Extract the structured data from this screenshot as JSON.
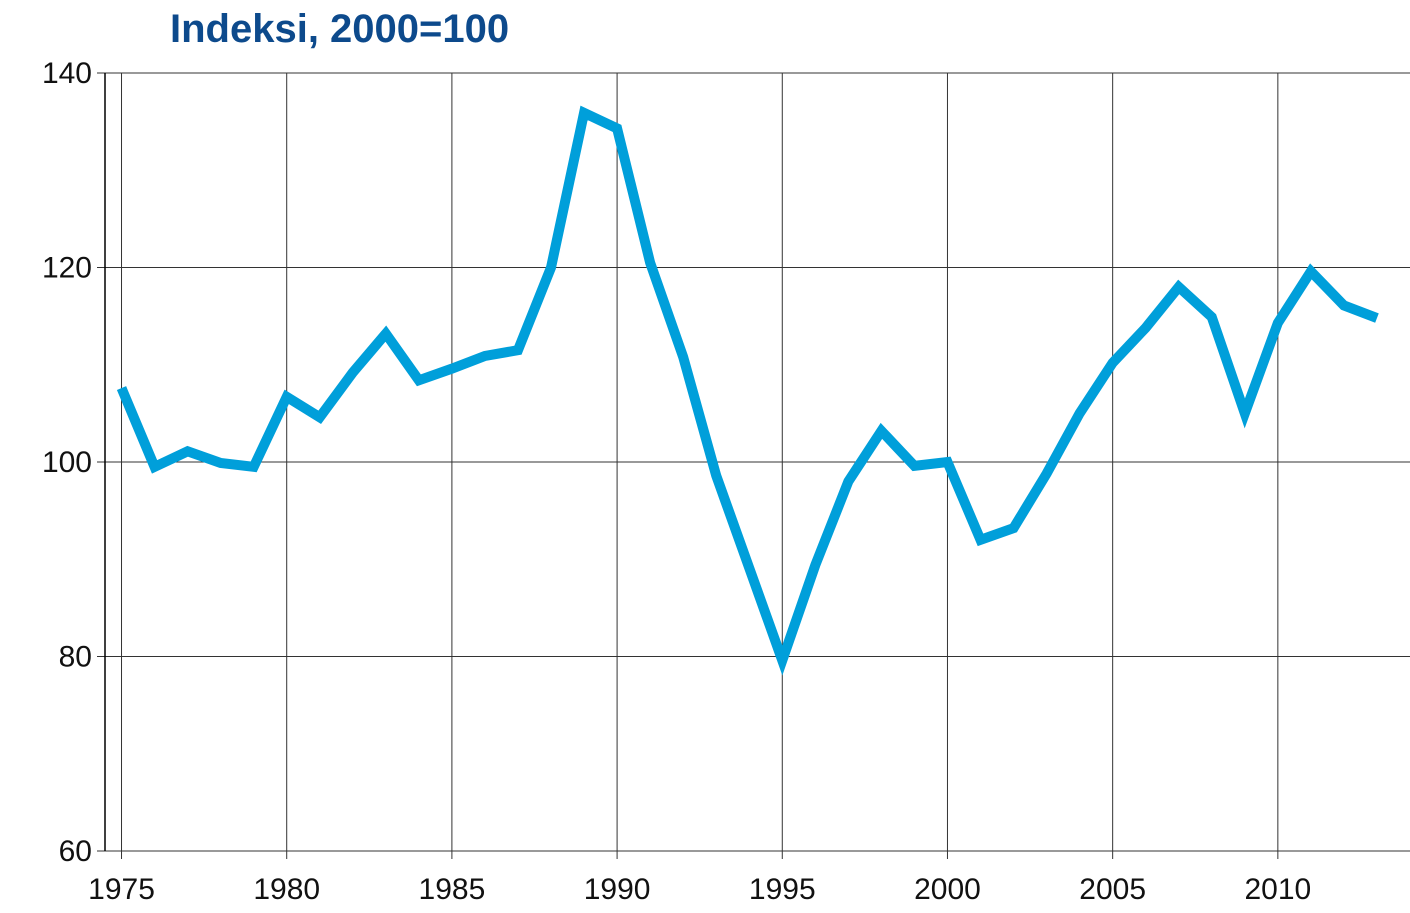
{
  "chart_data": {
    "type": "line",
    "title": "Indeksi, 2000=100",
    "x": [
      1975,
      1976,
      1977,
      1978,
      1979,
      1980,
      1981,
      1982,
      1983,
      1984,
      1985,
      1986,
      1987,
      1988,
      1989,
      1990,
      1991,
      1992,
      1993,
      1994,
      1995,
      1996,
      1997,
      1998,
      1999,
      2000,
      2001,
      2002,
      2003,
      2004,
      2005,
      2006,
      2007,
      2008,
      2009,
      2010,
      2011,
      2012,
      2013
    ],
    "series": [
      {
        "color": "#009fda",
        "values": [
          107.6,
          99.5,
          101.1,
          99.9,
          99.5,
          106.7,
          104.6,
          109.2,
          113.2,
          108.4,
          109.6,
          110.9,
          111.5,
          120.0,
          135.9,
          134.3,
          120.5,
          110.8,
          98.6,
          89.1,
          79.6,
          89.4,
          98.0,
          103.2,
          99.6,
          100.0,
          92.0,
          93.2,
          98.8,
          105.0,
          110.2,
          113.8,
          118.0,
          114.9,
          105.0,
          114.3,
          119.6,
          116.1,
          114.8
        ]
      }
    ],
    "xlim": [
      1974.5,
      2014
    ],
    "xticks": [
      1975,
      1980,
      1985,
      1990,
      1995,
      2000,
      2005,
      2010
    ],
    "ylim": [
      60,
      140
    ],
    "yticks": [
      60,
      80,
      100,
      120,
      140
    ],
    "grid": true
  }
}
